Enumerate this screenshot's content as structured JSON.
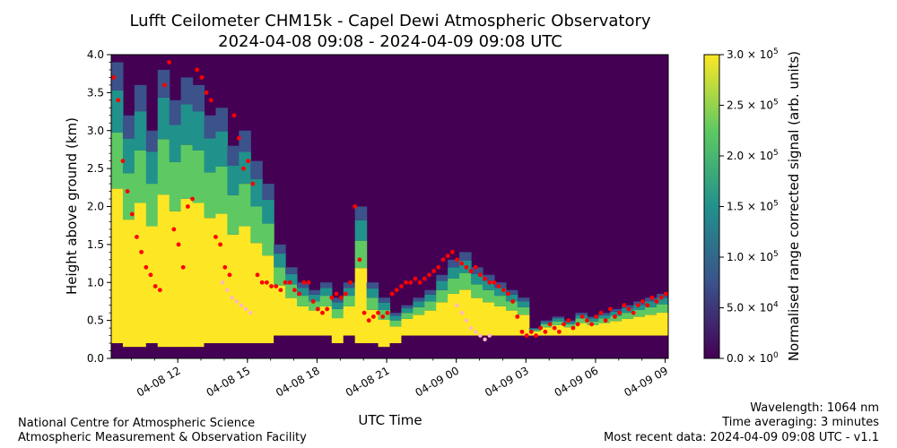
{
  "chart_data": {
    "type": "heatmap",
    "title": "Lufft Ceilometer CHM15k - Capel Dewi Atmospheric Observatory",
    "subtitle": "2024-04-08 09:08 - 2024-04-09 09:08 UTC",
    "xlabel": "UTC Time",
    "ylabel": "Height above ground (km)",
    "xlim_hours": [
      0,
      24
    ],
    "ylim": [
      0.0,
      4.0
    ],
    "x_ticks": [
      {
        "label": "04-08 12",
        "hour": 2.867
      },
      {
        "label": "04-08 15",
        "hour": 5.867
      },
      {
        "label": "04-08 18",
        "hour": 8.867
      },
      {
        "label": "04-08 21",
        "hour": 11.867
      },
      {
        "label": "04-09 00",
        "hour": 14.867
      },
      {
        "label": "04-09 03",
        "hour": 17.867
      },
      {
        "label": "04-09 06",
        "hour": 20.867
      },
      {
        "label": "04-09 09",
        "hour": 23.867
      }
    ],
    "y_ticks": [
      {
        "label": "0.0",
        "value": 0.0
      },
      {
        "label": "0.5",
        "value": 0.5
      },
      {
        "label": "1.0",
        "value": 1.0
      },
      {
        "label": "1.5",
        "value": 1.5
      },
      {
        "label": "2.0",
        "value": 2.0
      },
      {
        "label": "2.5",
        "value": 2.5
      },
      {
        "label": "3.0",
        "value": 3.0
      },
      {
        "label": "3.5",
        "value": 3.5
      },
      {
        "label": "4.0",
        "value": 4.0
      }
    ],
    "colorbar": {
      "label": "Normalised range corrected signal (arb. units)",
      "colormap": "viridis",
      "range": [
        0,
        300000
      ],
      "ticks": [
        {
          "value": 0,
          "mantissa": "0.0",
          "exponent": "0"
        },
        {
          "value": 50000,
          "mantissa": "5.0",
          "exponent": "4"
        },
        {
          "value": 100000,
          "mantissa": "1.0",
          "exponent": "5"
        },
        {
          "value": 150000,
          "mantissa": "1.5",
          "exponent": "5"
        },
        {
          "value": 200000,
          "mantissa": "2.0",
          "exponent": "5"
        },
        {
          "value": 250000,
          "mantissa": "2.5",
          "exponent": "5"
        },
        {
          "value": 300000,
          "mantissa": "3.0",
          "exponent": "5"
        }
      ]
    },
    "signal_columns_hours_km": [
      [
        0.0,
        0.2,
        3.9
      ],
      [
        0.5,
        0.15,
        3.2
      ],
      [
        1.0,
        0.15,
        3.6
      ],
      [
        1.5,
        0.2,
        3.0
      ],
      [
        2.0,
        0.15,
        3.8
      ],
      [
        2.5,
        0.15,
        3.4
      ],
      [
        3.0,
        0.15,
        3.7
      ],
      [
        3.5,
        0.15,
        3.6
      ],
      [
        4.0,
        0.2,
        3.2
      ],
      [
        4.5,
        0.2,
        3.3
      ],
      [
        5.0,
        0.2,
        2.8
      ],
      [
        5.5,
        0.2,
        3.0
      ],
      [
        6.0,
        0.2,
        2.6
      ],
      [
        6.5,
        0.2,
        2.3
      ],
      [
        7.0,
        0.3,
        1.5
      ],
      [
        7.5,
        0.3,
        1.2
      ],
      [
        8.0,
        0.3,
        1.0
      ],
      [
        8.5,
        0.3,
        0.9
      ],
      [
        9.0,
        0.3,
        1.0
      ],
      [
        9.5,
        0.2,
        0.8
      ],
      [
        10.0,
        0.3,
        1.0
      ],
      [
        10.5,
        0.2,
        2.0
      ],
      [
        11.0,
        0.2,
        1.0
      ],
      [
        11.5,
        0.15,
        0.8
      ],
      [
        12.0,
        0.2,
        0.6
      ],
      [
        12.5,
        0.3,
        0.7
      ],
      [
        13.0,
        0.3,
        0.8
      ],
      [
        13.5,
        0.3,
        0.9
      ],
      [
        14.0,
        0.3,
        1.1
      ],
      [
        14.5,
        0.3,
        1.3
      ],
      [
        15.0,
        0.3,
        1.4
      ],
      [
        15.5,
        0.3,
        1.2
      ],
      [
        16.0,
        0.3,
        1.1
      ],
      [
        16.5,
        0.3,
        1.0
      ],
      [
        17.0,
        0.3,
        0.9
      ],
      [
        17.5,
        0.3,
        0.8
      ],
      [
        18.0,
        0.3,
        0.4
      ],
      [
        18.5,
        0.3,
        0.5
      ],
      [
        19.0,
        0.3,
        0.55
      ],
      [
        19.5,
        0.3,
        0.5
      ],
      [
        20.0,
        0.3,
        0.6
      ],
      [
        20.5,
        0.3,
        0.55
      ],
      [
        21.0,
        0.3,
        0.6
      ],
      [
        21.5,
        0.3,
        0.65
      ],
      [
        22.0,
        0.3,
        0.7
      ],
      [
        22.5,
        0.3,
        0.75
      ],
      [
        23.0,
        0.3,
        0.8
      ],
      [
        23.5,
        0.3,
        0.85
      ]
    ],
    "cloud_base_hours_km": [
      [
        0.1,
        3.7
      ],
      [
        0.3,
        3.4
      ],
      [
        0.5,
        2.6
      ],
      [
        0.7,
        2.2
      ],
      [
        0.9,
        1.9
      ],
      [
        1.1,
        1.6
      ],
      [
        1.3,
        1.4
      ],
      [
        1.5,
        1.2
      ],
      [
        1.7,
        1.1
      ],
      [
        1.9,
        0.95
      ],
      [
        2.1,
        0.9
      ],
      [
        2.3,
        3.6
      ],
      [
        2.5,
        3.9
      ],
      [
        2.7,
        1.7
      ],
      [
        2.9,
        1.5
      ],
      [
        3.1,
        1.2
      ],
      [
        3.3,
        2.0
      ],
      [
        3.5,
        2.1
      ],
      [
        3.7,
        3.8
      ],
      [
        3.9,
        3.7
      ],
      [
        4.1,
        3.5
      ],
      [
        4.3,
        3.4
      ],
      [
        4.5,
        1.6
      ],
      [
        4.7,
        1.5
      ],
      [
        4.9,
        1.2
      ],
      [
        5.1,
        1.1
      ],
      [
        5.3,
        3.2
      ],
      [
        5.5,
        2.9
      ],
      [
        5.7,
        2.5
      ],
      [
        5.9,
        2.6
      ],
      [
        6.1,
        2.3
      ],
      [
        6.3,
        1.1
      ],
      [
        6.5,
        1.0
      ],
      [
        6.7,
        1.0
      ],
      [
        6.9,
        0.95
      ],
      [
        7.1,
        0.95
      ],
      [
        7.3,
        0.9
      ],
      [
        7.5,
        1.0
      ],
      [
        7.7,
        1.0
      ],
      [
        7.9,
        0.9
      ],
      [
        8.1,
        0.85
      ],
      [
        8.3,
        1.0
      ],
      [
        8.5,
        1.0
      ],
      [
        8.7,
        0.75
      ],
      [
        8.9,
        0.65
      ],
      [
        9.1,
        0.6
      ],
      [
        9.3,
        0.65
      ],
      [
        9.5,
        0.8
      ],
      [
        9.7,
        0.85
      ],
      [
        9.9,
        0.8
      ],
      [
        10.1,
        0.85
      ],
      [
        10.3,
        1.0
      ],
      [
        10.5,
        2.0
      ],
      [
        10.7,
        1.3
      ],
      [
        10.9,
        0.6
      ],
      [
        11.1,
        0.5
      ],
      [
        11.3,
        0.55
      ],
      [
        11.5,
        0.6
      ],
      [
        11.7,
        0.55
      ],
      [
        11.9,
        0.6
      ],
      [
        12.1,
        0.85
      ],
      [
        12.3,
        0.9
      ],
      [
        12.5,
        0.95
      ],
      [
        12.7,
        1.0
      ],
      [
        12.9,
        1.0
      ],
      [
        13.1,
        1.05
      ],
      [
        13.3,
        1.0
      ],
      [
        13.5,
        1.05
      ],
      [
        13.7,
        1.1
      ],
      [
        13.9,
        1.15
      ],
      [
        14.1,
        1.2
      ],
      [
        14.3,
        1.3
      ],
      [
        14.5,
        1.35
      ],
      [
        14.7,
        1.4
      ],
      [
        14.9,
        1.3
      ],
      [
        15.1,
        1.25
      ],
      [
        15.3,
        1.2
      ],
      [
        15.5,
        1.15
      ],
      [
        15.7,
        1.2
      ],
      [
        15.9,
        1.1
      ],
      [
        16.1,
        1.05
      ],
      [
        16.3,
        1.0
      ],
      [
        16.5,
        1.0
      ],
      [
        16.7,
        0.95
      ],
      [
        16.9,
        0.9
      ],
      [
        17.1,
        0.85
      ],
      [
        17.3,
        0.75
      ],
      [
        17.5,
        0.55
      ],
      [
        17.7,
        0.35
      ],
      [
        17.9,
        0.3
      ],
      [
        18.1,
        0.35
      ],
      [
        18.3,
        0.3
      ],
      [
        18.5,
        0.4
      ],
      [
        18.7,
        0.35
      ],
      [
        18.9,
        0.45
      ],
      [
        19.1,
        0.4
      ],
      [
        19.3,
        0.35
      ],
      [
        19.5,
        0.45
      ],
      [
        19.7,
        0.5
      ],
      [
        19.9,
        0.4
      ],
      [
        20.1,
        0.45
      ],
      [
        20.3,
        0.55
      ],
      [
        20.5,
        0.5
      ],
      [
        20.7,
        0.45
      ],
      [
        20.9,
        0.55
      ],
      [
        21.1,
        0.6
      ],
      [
        21.3,
        0.5
      ],
      [
        21.5,
        0.65
      ],
      [
        21.7,
        0.55
      ],
      [
        21.9,
        0.6
      ],
      [
        22.1,
        0.7
      ],
      [
        22.3,
        0.65
      ],
      [
        22.5,
        0.6
      ],
      [
        22.7,
        0.7
      ],
      [
        22.9,
        0.75
      ],
      [
        23.1,
        0.7
      ],
      [
        23.3,
        0.8
      ],
      [
        23.5,
        0.75
      ],
      [
        23.7,
        0.8
      ],
      [
        23.9,
        0.85
      ]
    ],
    "secondary_points_hours_km": [
      [
        4.8,
        1.0
      ],
      [
        5.0,
        0.9
      ],
      [
        5.2,
        0.8
      ],
      [
        5.4,
        0.75
      ],
      [
        5.6,
        0.7
      ],
      [
        5.8,
        0.65
      ],
      [
        6.0,
        0.6
      ],
      [
        14.9,
        0.7
      ],
      [
        15.1,
        0.6
      ],
      [
        15.3,
        0.5
      ],
      [
        15.5,
        0.4
      ],
      [
        15.7,
        0.35
      ],
      [
        15.9,
        0.3
      ],
      [
        16.1,
        0.25
      ],
      [
        16.3,
        0.3
      ]
    ],
    "colors": {
      "viridis": [
        "#440154",
        "#3b528b",
        "#21918c",
        "#5ec962",
        "#fde725"
      ],
      "cloud_base": "#ff0000",
      "secondary": "#ffb6c1"
    }
  },
  "footer": {
    "org_line_1": "National Centre for Atmospheric Science",
    "org_line_2": "Atmospheric Measurement & Observation Facility",
    "info_line_1": "Wavelength: 1064 nm",
    "info_line_2": "Time averaging: 3 minutes",
    "info_line_3": "Most recent data: 2024-04-09 09:08 UTC - v1.1"
  }
}
